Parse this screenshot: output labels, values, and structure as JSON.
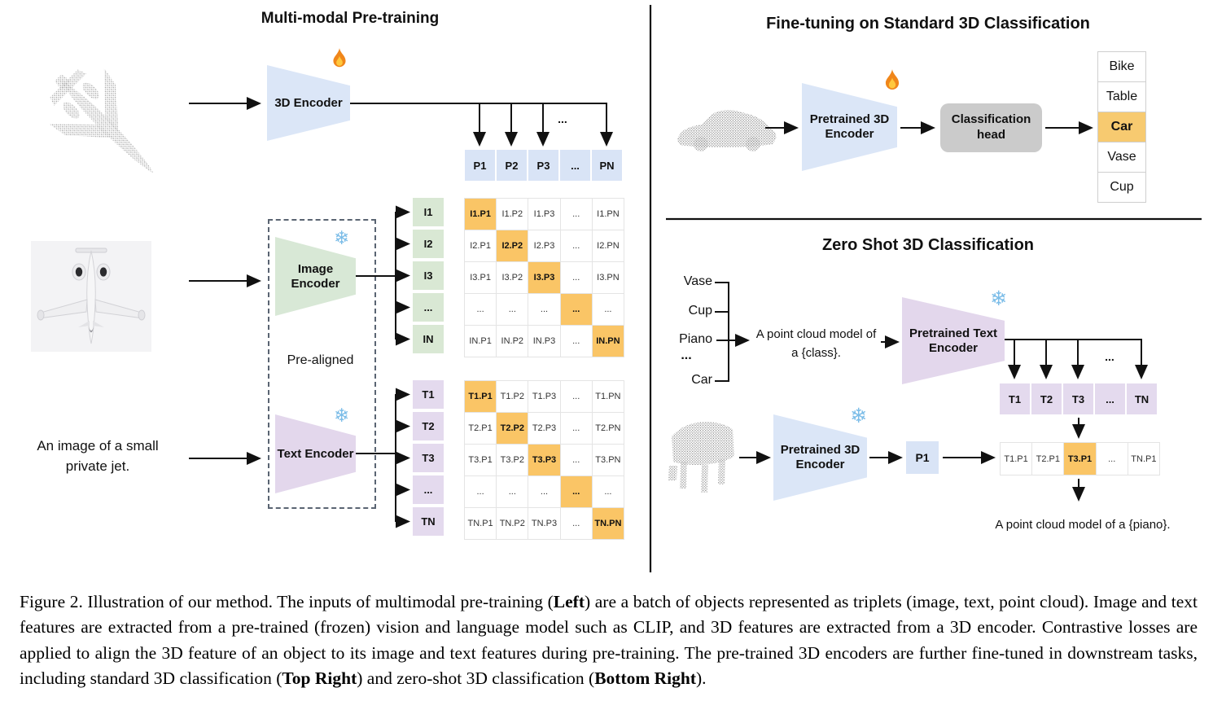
{
  "icons": {
    "snowflake": "❄"
  },
  "colors": {
    "encoder_blue": "#dbe6f7",
    "encoder_green": "#d8e8d6",
    "encoder_purple": "#e3d7ec",
    "highlight_orange": "#fac566",
    "head_gray": "#cbcbcb"
  },
  "left_panel": {
    "title": "Multi-modal Pre-training",
    "encoder_3d": {
      "label": "3D Encoder"
    },
    "image_encoder": {
      "label": "Image Encoder"
    },
    "text_encoder": {
      "label": "Text Encoder"
    },
    "pre_aligned_label": "Pre-aligned",
    "text_input": "An image of a small private jet.",
    "ellipsis": "...",
    "p_row": [
      "P1",
      "P2",
      "P3",
      "...",
      "PN"
    ],
    "i_col": [
      "I1",
      "I2",
      "I3",
      "...",
      "IN"
    ],
    "t_col": [
      "T1",
      "T2",
      "T3",
      "...",
      "TN"
    ],
    "i_matrix": [
      [
        "I1.P1",
        "I1.P2",
        "I1.P3",
        "...",
        "I1.PN"
      ],
      [
        "I2.P1",
        "I2.P2",
        "I2.P3",
        "...",
        "I2.PN"
      ],
      [
        "I3.P1",
        "I3.P2",
        "I3.P3",
        "...",
        "I3.PN"
      ],
      [
        "...",
        "...",
        "...",
        "...",
        "..."
      ],
      [
        "IN.P1",
        "IN.P2",
        "IN.P3",
        "...",
        "IN.PN"
      ]
    ],
    "t_matrix": [
      [
        "T1.P1",
        "T1.P2",
        "T1.P3",
        "...",
        "T1.PN"
      ],
      [
        "T2.P1",
        "T2.P2",
        "T2.P3",
        "...",
        "T2.PN"
      ],
      [
        "T3.P1",
        "T3.P2",
        "T3.P3",
        "...",
        "T3.PN"
      ],
      [
        "...",
        "...",
        "...",
        "...",
        "..."
      ],
      [
        "TN.P1",
        "TN.P2",
        "TN.P3",
        "...",
        "TN.PN"
      ]
    ]
  },
  "top_right_panel": {
    "title": "Fine-tuning on Standard 3D Classification",
    "encoder": {
      "label": "Pretrained 3D Encoder"
    },
    "head_label": "Classification head",
    "classes": [
      "Bike",
      "Table",
      "Car",
      "Vase",
      "Cup"
    ],
    "highlighted_class": "Car"
  },
  "bottom_right_panel": {
    "title": "Zero Shot 3D Classification",
    "classes": [
      "Vase",
      "Cup",
      "Piano",
      "...",
      "Car"
    ],
    "prompt": "A point cloud model of a {class}.",
    "text_encoder": {
      "label": "Pretrained Text Encoder"
    },
    "encoder_3d": {
      "label": "Pretrained 3D Encoder"
    },
    "t_row": [
      "T1",
      "T2",
      "T3",
      "...",
      "TN"
    ],
    "p1_label": "P1",
    "result_row": [
      "T1.P1",
      "T2.P1",
      "T3.P1",
      "...",
      "TN.P1"
    ],
    "highlighted_result": "T3.P1",
    "ellipsis": "...",
    "output_prompt": "A point cloud model of a {piano}."
  },
  "caption": {
    "segments": [
      {
        "text": "Figure 2. Illustration of our method. The inputs of multimodal pre-training (",
        "bold": false
      },
      {
        "text": "Left",
        "bold": true
      },
      {
        "text": ") are a batch of objects represented as triplets (image, text, point cloud). Image and text features are extracted from a pre-trained (frozen) vision and language model such as CLIP, and 3D features are extracted from a 3D encoder. Contrastive losses are applied to align the 3D feature of an object to its image and text features during pre-training. The pre-trained 3D encoders are further fine-tuned in downstream tasks, including standard 3D classification (",
        "bold": false
      },
      {
        "text": "Top Right",
        "bold": true
      },
      {
        "text": ") and zero-shot 3D classification (",
        "bold": false
      },
      {
        "text": "Bottom Right",
        "bold": true
      },
      {
        "text": ").",
        "bold": false
      }
    ]
  }
}
